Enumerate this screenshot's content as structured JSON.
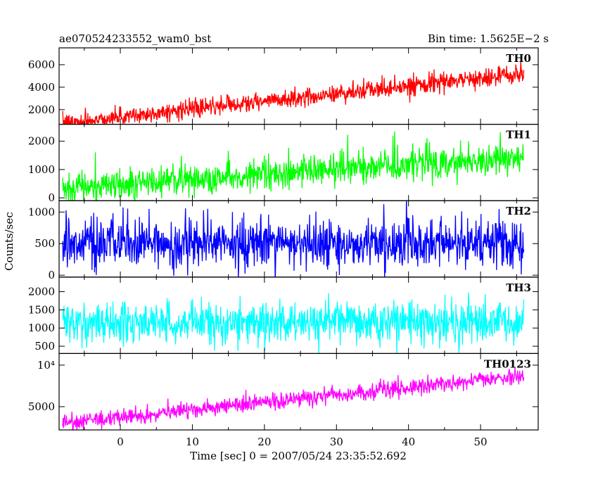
{
  "header": {
    "left": "ae070524233552_wam0_bst",
    "right": "Bin time: 1.5625E−2 s"
  },
  "chart_data": {
    "type": "line",
    "xlabel": "Time [sec] 0 = 2007/05/24 23:35:52.692",
    "ylabel": "Counts/sec",
    "xlim": [
      -8.5,
      58
    ],
    "xticks": [
      0,
      10,
      20,
      30,
      40,
      50
    ],
    "data_x_range": [
      -8,
      56
    ],
    "panels": [
      {
        "name": "TH0",
        "color": "#ff0000",
        "ylim": [
          700,
          7500
        ],
        "yticks": [
          2000,
          4000,
          6000
        ],
        "trend_start": 800,
        "trend_end": 5200,
        "noise_amplitude": 700
      },
      {
        "name": "TH1",
        "color": "#00ff00",
        "ylim": [
          -100,
          2600
        ],
        "yticks": [
          0,
          1000,
          2000
        ],
        "trend_start": 350,
        "trend_end": 1450,
        "noise_amplitude": 500
      },
      {
        "name": "TH2",
        "color": "#0000ff",
        "ylim": [
          -30,
          1180
        ],
        "yticks": [
          0,
          500,
          1000
        ],
        "trend_start": 500,
        "trend_end": 500,
        "noise_amplitude": 350
      },
      {
        "name": "TH3",
        "color": "#00ffff",
        "ylim": [
          300,
          2400
        ],
        "yticks": [
          500,
          1000,
          1500,
          2000
        ],
        "trend_start": 1150,
        "trend_end": 1150,
        "noise_amplitude": 500
      },
      {
        "name": "TH0123",
        "color": "#ff00ff",
        "ylim": [
          2200,
          11400
        ],
        "yticks": [
          5000,
          10000
        ],
        "ytick_labels": [
          "5000",
          "10⁴"
        ],
        "trend_start": 3000,
        "trend_end": 8700,
        "noise_amplitude": 900
      }
    ]
  }
}
